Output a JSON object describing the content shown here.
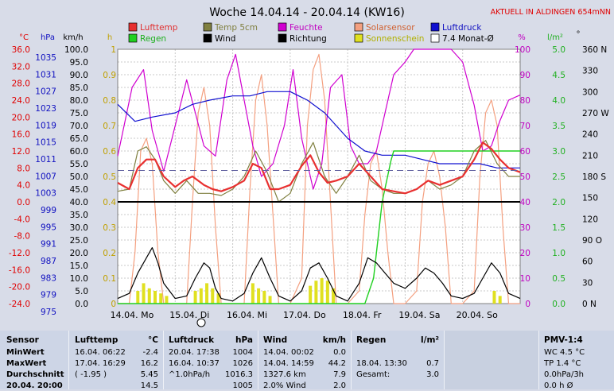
{
  "chart_data": {
    "type": "line",
    "title": "Woche 14.04.14 - 20.04.14 (KW16)",
    "status_note": "AKTUELL IN ALDINGEN 654mNN",
    "legend": [
      {
        "label": "Lufttemp",
        "color": "#e83030"
      },
      {
        "label": "Temp 5cm",
        "color": "#808040"
      },
      {
        "label": "Feuchte",
        "color": "#d000d0"
      },
      {
        "label": "Solarsensor",
        "color": "#f4a080"
      },
      {
        "label": "Luftdruck",
        "color": "#1010d0"
      },
      {
        "label": "Regen",
        "color": "#20d020"
      },
      {
        "label": "Wind",
        "color": "#000000"
      },
      {
        "label": "Richtung",
        "color": "#000000"
      },
      {
        "label": "Sonnenschein",
        "color": "#e0e020"
      },
      {
        "label": "7.4 Monat-Ø",
        "color": "#ffffff"
      }
    ],
    "axis_units": {
      "temp": "°C",
      "pressure": "hPa",
      "wind": "km/h",
      "sun": "h",
      "humidity": "%",
      "rain": "l/m²",
      "direction": "°"
    },
    "temp_ticks": [
      "36.0",
      "32.0",
      "28.0",
      "24.0",
      "20.0",
      "16.0",
      "12.0",
      "8.0",
      "4.0",
      "0.0",
      "-4.0",
      "-8.0",
      "-12.0",
      "-16.0",
      "-20.0",
      "-24.0"
    ],
    "pressure_ticks": [
      "1035",
      "1031",
      "1027",
      "1023",
      "1019",
      "1015",
      "1011",
      "1007",
      "1003",
      "999",
      "995",
      "991",
      "987",
      "983",
      "979",
      "975"
    ],
    "wind_ticks": [
      "100.0",
      "95.0",
      "90.0",
      "85.0",
      "80.0",
      "75.0",
      "70.0",
      "65.0",
      "60.0",
      "55.0",
      "50.0",
      "45.0",
      "40.0",
      "35.0",
      "30.0",
      "25.0",
      "20.0",
      "15.0",
      "10.0",
      "5.0",
      "0.0"
    ],
    "sun_ticks": [
      "1",
      "0.9",
      "0.8",
      "0.7",
      "0.6",
      "0.5",
      "0.4",
      "0.3",
      "0.2",
      "0.1",
      "0"
    ],
    "humidity_ticks": [
      "100",
      "90",
      "80",
      "70",
      "60",
      "50",
      "40",
      "30",
      "20",
      "10",
      "0"
    ],
    "rain_ticks": [
      "5.0",
      "4.5",
      "4.0",
      "3.5",
      "3.0",
      "2.5",
      "2.0",
      "1.5",
      "1.0",
      "0.5",
      "0.0"
    ],
    "dir_ticks": [
      "360 N",
      "330",
      "300",
      "270 W",
      "240",
      "210",
      "180 S",
      "150",
      "120",
      "90 O",
      "60",
      "30",
      "0 N"
    ],
    "days": [
      "14.04. Mo",
      "15.04. Di",
      "16.04. Mi",
      "17.04. Do",
      "18.04. Fr",
      "19.04. Sa",
      "20.04. So"
    ],
    "ylim_temp": [
      -24,
      36
    ],
    "ylim_humidity": [
      0,
      100
    ],
    "ylim_rain": [
      0,
      5
    ],
    "ylim_pressure": [
      975,
      1035
    ],
    "series": [
      {
        "name": "Lufttemp",
        "unit": "°C",
        "x_day": [
          0,
          0.2,
          0.35,
          0.5,
          0.65,
          0.8,
          1.0,
          1.15,
          1.3,
          1.5,
          1.65,
          1.8,
          2.0,
          2.2,
          2.35,
          2.5,
          2.65,
          2.8,
          3.0,
          3.2,
          3.35,
          3.5,
          3.65,
          3.8,
          4.0,
          4.2,
          4.4,
          4.6,
          4.8,
          5.0,
          5.2,
          5.4,
          5.6,
          5.8,
          6.0,
          6.2,
          6.35,
          6.5,
          6.65,
          6.8,
          7.0
        ],
        "values": [
          4.5,
          3.0,
          8.0,
          10.0,
          10.0,
          6.0,
          3.5,
          5.0,
          6.0,
          4.0,
          3.0,
          2.5,
          3.5,
          5.0,
          9.0,
          8.0,
          3.0,
          3.0,
          4.0,
          8.5,
          11.0,
          7.0,
          4.5,
          5.0,
          6.0,
          9.0,
          6.0,
          3.0,
          2.5,
          2.0,
          3.0,
          5.0,
          4.0,
          5.0,
          6.0,
          10.0,
          14.0,
          12.5,
          10.0,
          8.0,
          7.0
        ]
      },
      {
        "name": "Temp 5cm",
        "unit": "°C",
        "x_day": [
          0,
          0.2,
          0.35,
          0.5,
          0.65,
          0.8,
          1.0,
          1.2,
          1.4,
          1.6,
          1.8,
          2.0,
          2.2,
          2.4,
          2.6,
          2.8,
          3.0,
          3.2,
          3.4,
          3.6,
          3.8,
          4.0,
          4.2,
          4.4,
          4.6,
          4.8,
          5.0,
          5.2,
          5.4,
          5.6,
          5.8,
          6.0,
          6.2,
          6.4,
          6.6,
          6.8,
          7.0
        ],
        "values": [
          2.5,
          3.0,
          12.0,
          13.0,
          10.0,
          5.0,
          2.0,
          5.0,
          2.0,
          2.0,
          1.5,
          3.0,
          6.0,
          12.0,
          7.0,
          0.0,
          2.0,
          9.0,
          14.0,
          6.0,
          2.0,
          6.0,
          11.0,
          5.0,
          3.0,
          2.0,
          2.0,
          3.0,
          5.0,
          3.0,
          4.0,
          6.0,
          12.0,
          14.5,
          9.0,
          6.0,
          6.0
        ]
      },
      {
        "name": "Feuchte",
        "unit": "%",
        "x_day": [
          0,
          0.25,
          0.45,
          0.6,
          0.8,
          1.0,
          1.2,
          1.35,
          1.5,
          1.7,
          1.9,
          2.05,
          2.2,
          2.35,
          2.5,
          2.7,
          2.9,
          3.05,
          3.2,
          3.4,
          3.55,
          3.7,
          3.9,
          4.05,
          4.2,
          4.35,
          4.5,
          4.65,
          4.8,
          5.0,
          5.15,
          5.3,
          5.45,
          5.6,
          5.8,
          6.0,
          6.2,
          6.35,
          6.5,
          6.65,
          6.8,
          7.0
        ],
        "values": [
          58,
          85,
          92,
          68,
          52,
          70,
          88,
          75,
          62,
          58,
          88,
          98,
          80,
          62,
          50,
          55,
          70,
          92,
          65,
          45,
          55,
          85,
          90,
          62,
          55,
          55,
          60,
          75,
          90,
          95,
          100,
          100,
          100,
          100,
          100,
          95,
          78,
          60,
          62,
          72,
          80,
          82
        ]
      },
      {
        "name": "Solarsensor",
        "unit": "%",
        "x_day": [
          0,
          0.2,
          0.3,
          0.4,
          0.5,
          0.6,
          0.7,
          0.8,
          1.0,
          1.2,
          1.3,
          1.4,
          1.5,
          1.6,
          1.7,
          1.8,
          2.0,
          2.2,
          2.3,
          2.4,
          2.5,
          2.6,
          2.7,
          2.8,
          3.0,
          3.2,
          3.3,
          3.4,
          3.5,
          3.6,
          3.7,
          3.8,
          4.0,
          4.2,
          4.3,
          4.4,
          4.5,
          4.6,
          4.7,
          4.8,
          5.0,
          5.2,
          5.3,
          5.4,
          5.5,
          5.6,
          5.7,
          5.8,
          6.0,
          6.2,
          6.3,
          6.4,
          6.5,
          6.6,
          6.7,
          6.8,
          7.0
        ],
        "values": [
          0,
          0,
          20,
          60,
          65,
          55,
          20,
          0,
          0,
          0,
          40,
          75,
          85,
          70,
          30,
          0,
          0,
          0,
          45,
          80,
          90,
          70,
          35,
          0,
          0,
          10,
          70,
          92,
          98,
          80,
          40,
          0,
          0,
          5,
          35,
          55,
          60,
          45,
          20,
          0,
          0,
          5,
          40,
          55,
          60,
          50,
          30,
          0,
          0,
          5,
          50,
          75,
          80,
          70,
          30,
          0,
          0
        ]
      },
      {
        "name": "Luftdruck",
        "unit": "hPa",
        "x_day": [
          0,
          0.3,
          0.6,
          1.0,
          1.3,
          1.6,
          2.0,
          2.3,
          2.6,
          3.0,
          3.3,
          3.6,
          4.0,
          4.3,
          4.6,
          5.0,
          5.3,
          5.6,
          6.0,
          6.3,
          6.6,
          7.0
        ],
        "values": [
          1022,
          1018,
          1019,
          1020,
          1022,
          1023,
          1024,
          1024,
          1025,
          1025,
          1023,
          1020,
          1014,
          1011,
          1010,
          1010,
          1009,
          1008,
          1008,
          1008,
          1007,
          1007
        ]
      },
      {
        "name": "Regen",
        "unit": "l/m²",
        "x_day": [
          0,
          1,
          2,
          3,
          4,
          4.3,
          4.45,
          4.6,
          4.75,
          4.8,
          5.0,
          6.0,
          7.0
        ],
        "values": [
          0,
          0,
          0,
          0,
          0,
          0,
          0.5,
          2.0,
          2.8,
          3.0,
          3.0,
          3.0,
          3.0
        ]
      },
      {
        "name": "Wind",
        "unit": "km/h",
        "x_day": [
          0,
          0.2,
          0.35,
          0.5,
          0.6,
          0.7,
          0.8,
          1.0,
          1.2,
          1.35,
          1.5,
          1.6,
          1.7,
          1.8,
          2.0,
          2.2,
          2.35,
          2.5,
          2.65,
          2.8,
          3.0,
          3.2,
          3.35,
          3.5,
          3.65,
          3.8,
          4.0,
          4.2,
          4.35,
          4.5,
          4.65,
          4.8,
          5.0,
          5.2,
          5.35,
          5.5,
          5.65,
          5.8,
          6.0,
          6.2,
          6.35,
          6.5,
          6.65,
          6.8,
          7.0
        ],
        "values": [
          2,
          4,
          12,
          18,
          22,
          16,
          8,
          2,
          3,
          10,
          16,
          14,
          6,
          2,
          1,
          4,
          12,
          18,
          10,
          3,
          1,
          5,
          14,
          16,
          10,
          3,
          1,
          8,
          18,
          16,
          12,
          8,
          6,
          10,
          14,
          12,
          8,
          3,
          2,
          4,
          10,
          16,
          12,
          4,
          2
        ]
      },
      {
        "name": "Sonnenschein",
        "unit": "h",
        "x_day": [
          0.35,
          0.45,
          0.55,
          0.65,
          0.75,
          0.85,
          1.35,
          1.45,
          1.55,
          1.65,
          1.75,
          2.35,
          2.45,
          2.55,
          2.65,
          3.35,
          3.45,
          3.55,
          3.65,
          3.75,
          6.55,
          6.65
        ],
        "values": [
          0.05,
          0.08,
          0.06,
          0.05,
          0.04,
          0.03,
          0.05,
          0.06,
          0.08,
          0.06,
          0.04,
          0.08,
          0.06,
          0.05,
          0.03,
          0.07,
          0.09,
          0.1,
          0.09,
          0.06,
          0.05,
          0.03
        ]
      },
      {
        "name": "7.4 Monat-Ø",
        "unit": "°C",
        "values": [
          7.4
        ]
      }
    ]
  },
  "table": {
    "sensor": {
      "header": "Sensor",
      "rows": [
        "MinWert",
        "MaxWert",
        "Durchschnitt",
        "20.04. 20:00"
      ]
    },
    "lufttemp": {
      "header": "Lufttemp",
      "unit": "°C",
      "rows": [
        [
          "16.04.  06:22",
          "-2.4"
        ],
        [
          "17.04.  16:29",
          "16.2"
        ],
        [
          "( -1.95 )",
          "5.45"
        ],
        [
          "",
          "14.5"
        ]
      ]
    },
    "luftdruck": {
      "header": "Luftdruck",
      "unit": "hPa",
      "rows": [
        [
          "20.04.  17:38",
          "1004"
        ],
        [
          "16.04.  10:37",
          "1026"
        ],
        [
          "^1.0hPa/h",
          "1016.3"
        ],
        [
          "",
          "1005"
        ]
      ]
    },
    "wind": {
      "header": "Wind",
      "unit": "km/h",
      "rows": [
        [
          "14.04.  00:02",
          "0.0"
        ],
        [
          "14.04.  14:59",
          "44.2"
        ],
        [
          "1327.6 km",
          "7.9"
        ],
        [
          "2.0%  Wind",
          "2.0"
        ]
      ]
    },
    "regen": {
      "header": "Regen",
      "unit": "l/m²",
      "rows": [
        [
          "",
          ""
        ],
        [
          "18.04.  13:30",
          "0.7"
        ],
        [
          "Gesamt:",
          "3.0"
        ],
        [
          "",
          ""
        ]
      ]
    },
    "pmv": {
      "header": "PMV-1:4",
      "rows": [
        "WC 4.5 °C",
        "TP 1.4 °C",
        "0.0hPa/3h",
        "0.0 h Ø"
      ]
    }
  }
}
